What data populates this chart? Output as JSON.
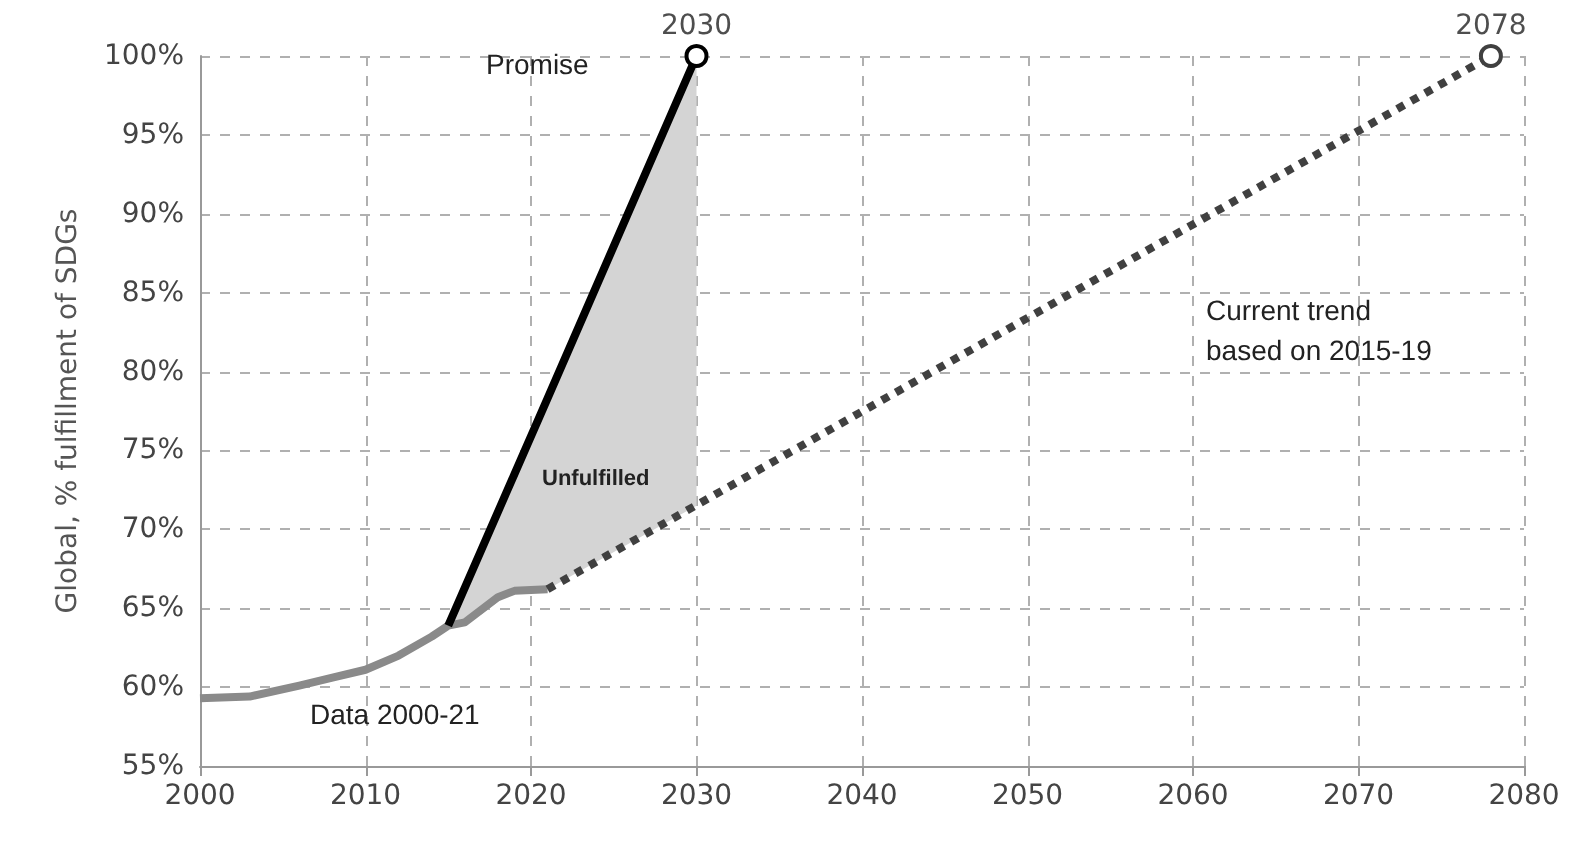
{
  "chart_data": {
    "type": "line",
    "ylabel": "Global, % fulfillment of SDGs",
    "xlim": [
      2000,
      2080
    ],
    "xticks": [
      2000,
      2010,
      2020,
      2030,
      2040,
      2050,
      2060,
      2070,
      2080
    ],
    "ylim": [
      55,
      100
    ],
    "yticks": [
      {
        "value": 55,
        "label": "55%"
      },
      {
        "value": 60,
        "label": "60%"
      },
      {
        "value": 65,
        "label": "65%"
      },
      {
        "value": 70,
        "label": "70%"
      },
      {
        "value": 75,
        "label": "75%"
      },
      {
        "value": 80,
        "label": "80%"
      },
      {
        "value": 85,
        "label": "85%"
      },
      {
        "value": 90,
        "label": "90%"
      },
      {
        "value": 95,
        "label": "95%"
      },
      {
        "value": 100,
        "label": "100%"
      }
    ],
    "grid": true,
    "series": [
      {
        "color": "#8a8a8a",
        "x": [
          2000,
          2003,
          2006,
          2008,
          2010,
          2012,
          2014,
          2015,
          2016,
          2018,
          2019,
          2021
        ],
        "values": [
          59.3,
          59.4,
          60.1,
          60.6,
          61.1,
          62.0,
          63.2,
          63.9,
          64.1,
          65.7,
          66.1,
          66.2
        ]
      },
      {
        "color": "#000000",
        "x": [
          2015,
          2017,
          2019,
          2021,
          2030
        ],
        "values": [
          63.9,
          68.7,
          73.5,
          78.3,
          100
        ],
        "lower": [
          63.9,
          64.6,
          66.2,
          66.2,
          71.5
        ],
        "upper": [
          63.9,
          68.7,
          73.5,
          78.3,
          100
        ]
      },
      {
        "color": "#404040",
        "line_style": "dotted",
        "x": [
          2021,
          2078
        ],
        "values": [
          66.2,
          100
        ]
      },
      {
        "type": "scatter",
        "marker": "circle",
        "colors": [
          "#000000",
          "#404040"
        ],
        "x": [
          2030,
          2078
        ],
        "values": [
          100,
          100
        ]
      }
    ],
    "annotations": [
      {
        "text": "2030",
        "x": 2030,
        "y": 100
      },
      {
        "text": "2078",
        "x": 2078,
        "y": 100
      },
      "Promise",
      "Unfulfilled",
      "Data 2000-21",
      "Current trend\nbased on 2015-19"
    ]
  }
}
